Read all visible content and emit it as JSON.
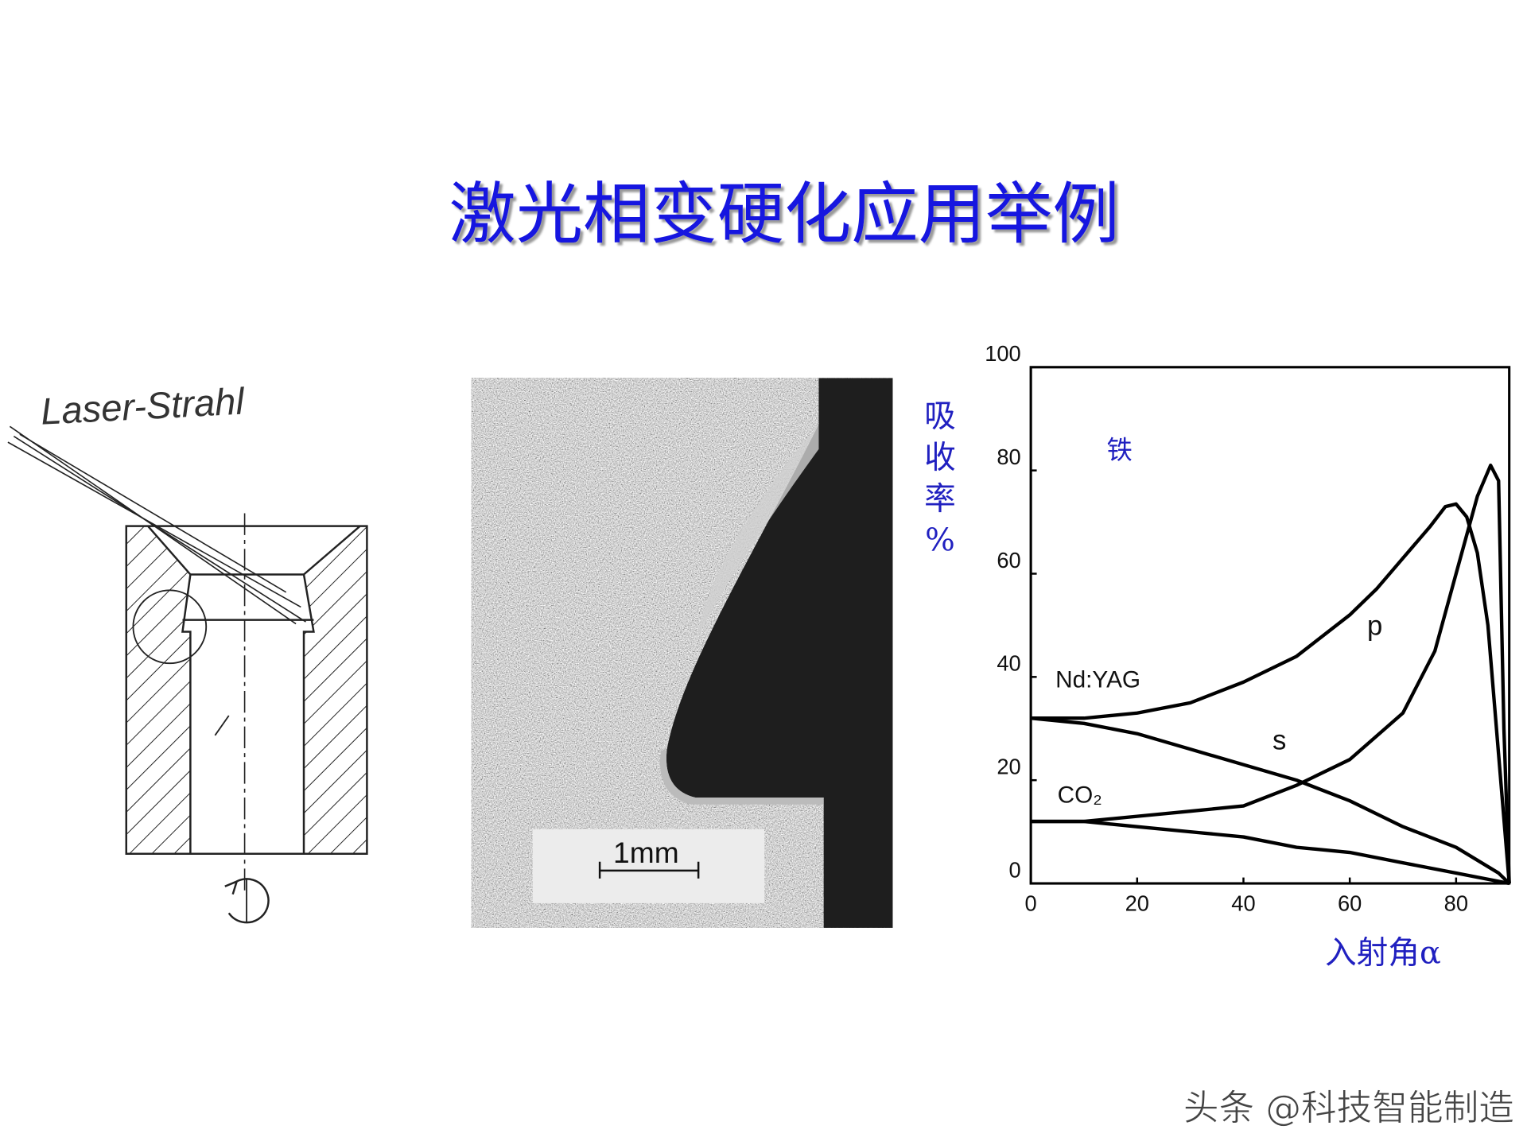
{
  "title": "激光相变硬化应用举例",
  "drawing": {
    "label": "Laser-Strahl"
  },
  "micrograph": {
    "scale_label": "1mm"
  },
  "chart_data": {
    "type": "line",
    "ylabel": "吸收率%",
    "xlabel": "入射角α",
    "annotations": [
      "铁",
      "Nd:YAG",
      "CO₂",
      "p",
      "s"
    ],
    "xlim": [
      0,
      90
    ],
    "ylim": [
      0,
      100
    ],
    "xticks": [
      0,
      20,
      40,
      60,
      80
    ],
    "yticks": [
      0,
      20,
      40,
      60,
      80,
      100
    ],
    "series": [
      {
        "color": "#000000",
        "x": [
          0,
          10,
          20,
          30,
          40,
          50,
          60,
          65,
          70,
          75,
          78,
          80,
          82,
          84,
          86,
          88,
          90
        ],
        "values": [
          32,
          32,
          33,
          35,
          39,
          44,
          52,
          57,
          63,
          69,
          73,
          73.5,
          71,
          64,
          50,
          25,
          0
        ]
      },
      {
        "color": "#000000",
        "x": [
          0,
          10,
          20,
          30,
          40,
          50,
          60,
          70,
          80,
          88,
          90
        ],
        "values": [
          32,
          31,
          29,
          26,
          23,
          20,
          16,
          11,
          7,
          2,
          0
        ]
      },
      {
        "color": "#000000",
        "x": [
          0,
          10,
          20,
          30,
          40,
          50,
          60,
          70,
          76,
          80,
          84,
          86.5,
          88,
          89,
          90
        ],
        "values": [
          12,
          12,
          13,
          14,
          15,
          19,
          24,
          33,
          45,
          60,
          75,
          81,
          78,
          30,
          0
        ]
      },
      {
        "color": "#000000",
        "x": [
          0,
          10,
          20,
          30,
          40,
          50,
          60,
          70,
          80,
          90
        ],
        "values": [
          12,
          12,
          11,
          10,
          9,
          7,
          6,
          4,
          2,
          0
        ]
      }
    ]
  },
  "watermark": "头条 @科技智能制造"
}
